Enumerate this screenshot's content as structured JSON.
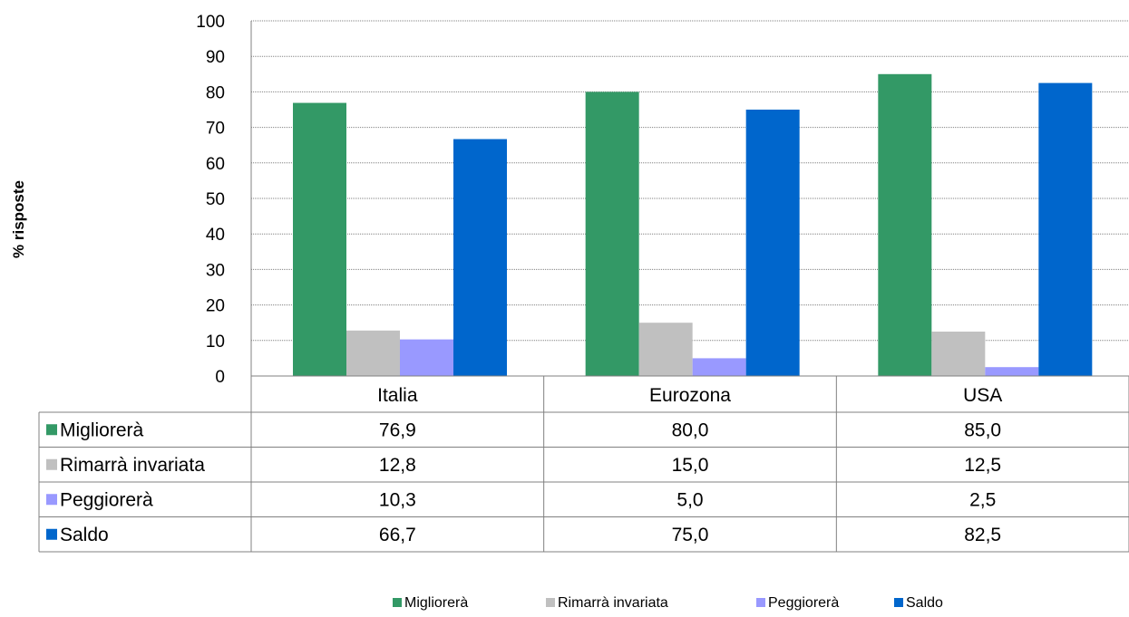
{
  "chart_data": {
    "type": "bar",
    "title": "",
    "xlabel": "",
    "ylabel": "% risposte",
    "ylim": [
      0,
      100
    ],
    "yticks": [
      0,
      10,
      20,
      30,
      40,
      50,
      60,
      70,
      80,
      90,
      100
    ],
    "grid": true,
    "legend_position": "bottom",
    "categories": [
      "Italia",
      "Eurozona",
      "USA"
    ],
    "series": [
      {
        "name": "Migliorerà",
        "color": "#339966",
        "values": [
          76.9,
          80.0,
          85.0
        ],
        "labels": [
          "76,9",
          "80,0",
          "85,0"
        ]
      },
      {
        "name": "Rimarrà invariata",
        "color": "#C0C0C0",
        "values": [
          12.8,
          15.0,
          12.5
        ],
        "labels": [
          "12,8",
          "15,0",
          "12,5"
        ]
      },
      {
        "name": "Peggiorerà",
        "color": "#9999FF",
        "values": [
          10.3,
          5.0,
          2.5
        ],
        "labels": [
          "10,3",
          "5,0",
          "2,5"
        ]
      },
      {
        "name": "Saldo",
        "color": "#0066CC",
        "values": [
          66.7,
          75.0,
          82.5
        ],
        "labels": [
          "66,7",
          "75,0",
          "82,5"
        ]
      }
    ],
    "data_table": true
  }
}
